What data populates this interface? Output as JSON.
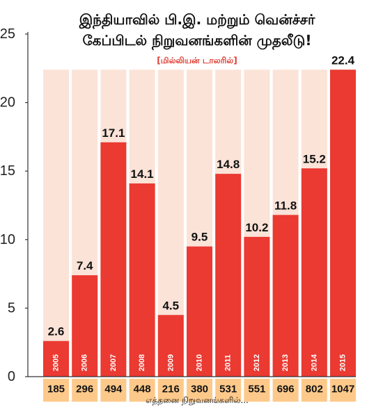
{
  "colors": {
    "bar": "#ea3a32",
    "bar_bg": "#fbe3d8",
    "count_box": "#fdc98a",
    "subtitle": "#e03a30"
  },
  "chart_data": {
    "type": "bar",
    "title_line1": "இந்தியாவில் பி.இ. மற்றும் வென்ச்சர்",
    "title_line2": "கேப்பிடல் நிறுவனங்களின் முதலீடு!",
    "subtitle": "[மில்லியன் டாலரில்]",
    "categories": [
      "2005",
      "2006",
      "2007",
      "2008",
      "2009",
      "2010",
      "2011",
      "2012",
      "2013",
      "2014",
      "2015"
    ],
    "values": [
      2.6,
      7.4,
      17.1,
      14.1,
      4.5,
      9.5,
      14.8,
      10.2,
      11.8,
      15.2,
      22.4
    ],
    "value_labels": [
      "2.6",
      "7.4",
      "17.1",
      "14.1",
      "4.5",
      "9.5",
      "14.8",
      "10.2",
      "11.8",
      "15.2",
      "22.4"
    ],
    "counts": [
      "185",
      "296",
      "494",
      "448",
      "216",
      "380",
      "531",
      "551",
      "696",
      "802",
      "1047"
    ],
    "counts_label": "எத்தனை நிறுவனங்களில்...",
    "ylim": [
      0,
      25
    ],
    "yticks": [
      "0",
      "5",
      "10",
      "15",
      "20",
      "25"
    ],
    "background_bar_max": 22.4,
    "grid": false
  }
}
